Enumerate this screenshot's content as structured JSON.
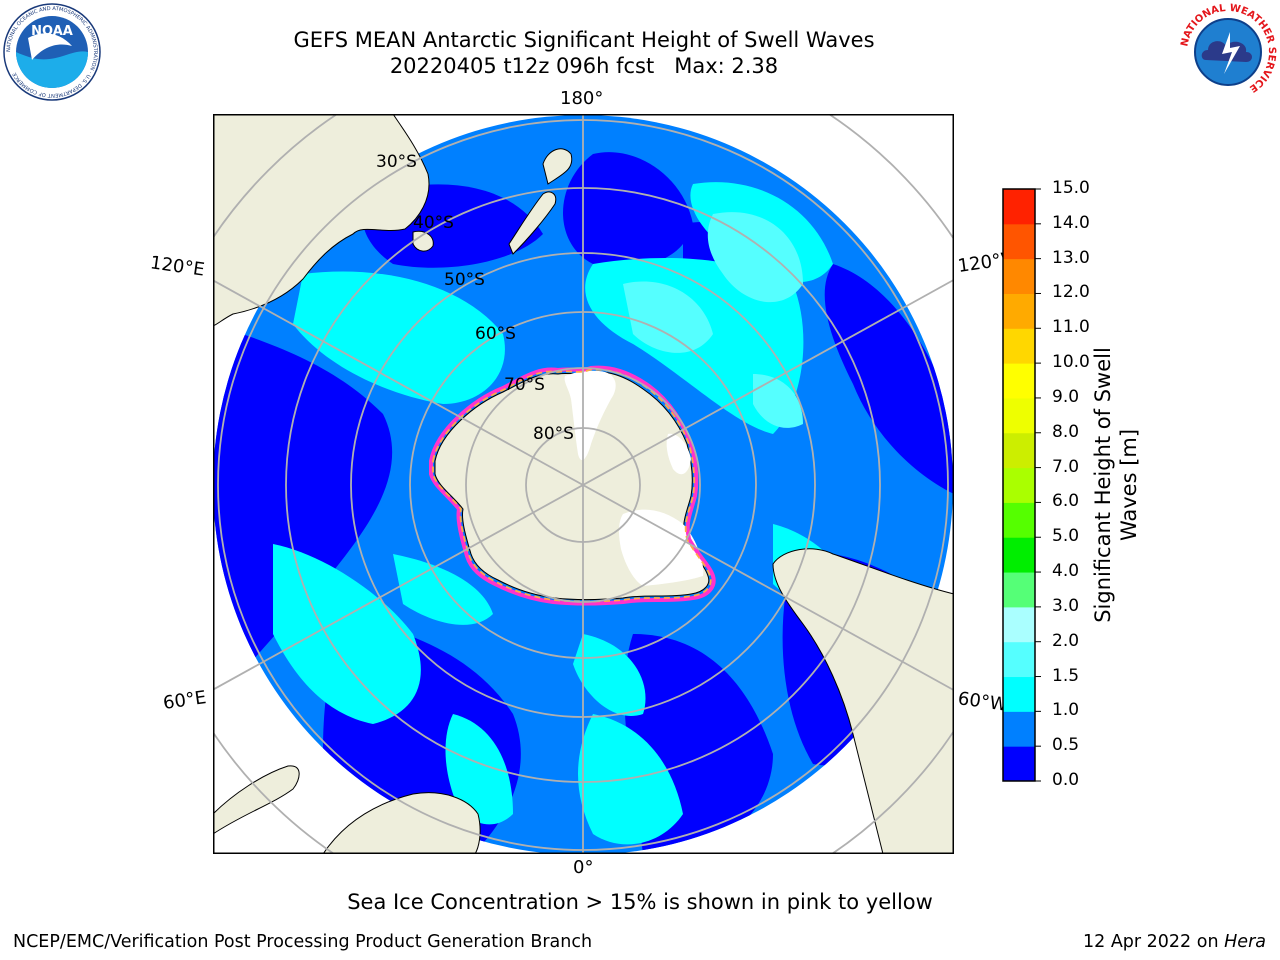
{
  "title_line1": "GEFS MEAN Antarctic Significant Height of Swell Waves",
  "title_line2": "20220405 t12z 096h fcst   Max: 2.38",
  "logos": {
    "left": {
      "name": "noaa-logo",
      "text": "NOAA",
      "ring_text": "NATIONAL OCEANIC AND ATMOSPHERIC ADMINISTRATION · U.S. DEPARTMENT OF COMMERCE"
    },
    "right": {
      "name": "nws-logo",
      "ring_text": "NATIONAL WEATHER SERVICE"
    }
  },
  "map": {
    "projection": "south-polar-stereographic",
    "longitude_labels": {
      "top": "180°",
      "bottom": "0°",
      "upper_left": "120°E",
      "upper_right": "120°W",
      "lower_left": "60°E",
      "lower_right": "60°W"
    },
    "latitude_labels": [
      "30°S",
      "40°S",
      "50°S",
      "60°S",
      "70°S",
      "80°S"
    ],
    "colors": {
      "ocean_low": "#0000ff",
      "ocean_mid": "#0080ff",
      "ocean_high": "#00ffff",
      "ocean_higher": "#55ffff",
      "land": "#eeeedc",
      "ice_shelf": "#ffffff",
      "grid": "#b0b0b0",
      "ice_edge_pink": "#ff33cc",
      "ice_edge_orange": "#ffaa44"
    }
  },
  "colorbar": {
    "title_line1": "Significant Height of Swell",
    "title_line2": "Waves [m]",
    "ticks": [
      "0.0",
      "0.5",
      "1.0",
      "1.5",
      "2.0",
      "3.0",
      "4.0",
      "5.0",
      "6.0",
      "7.0",
      "8.0",
      "9.0",
      "10.0",
      "11.0",
      "12.0",
      "13.0",
      "14.0",
      "15.0"
    ],
    "colors": [
      "#0000ff",
      "#0080ff",
      "#00ffff",
      "#55ffff",
      "#aaffff",
      "#55ff77",
      "#00ee00",
      "#55ff00",
      "#aaff00",
      "#ccee00",
      "#eeff00",
      "#ffff00",
      "#ffd700",
      "#ffaa00",
      "#ff8800",
      "#ff5500",
      "#ff2200"
    ]
  },
  "note": "Sea Ice Concentration > 15% is shown in pink to yellow",
  "footer_left": "NCEP/EMC/Verification Post Processing Product Generation Branch",
  "footer_right_prefix": "12 Apr 2022 on",
  "footer_right_host": "Hera"
}
